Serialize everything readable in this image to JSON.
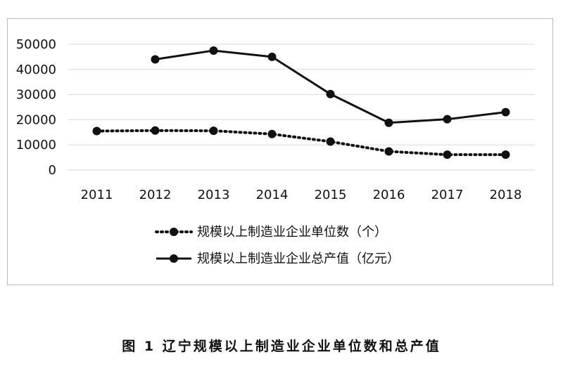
{
  "chart_data": {
    "type": "line",
    "title": "",
    "xlabel": "",
    "ylabel": "",
    "categories": [
      "2011",
      "2012",
      "2013",
      "2014",
      "2015",
      "2016",
      "2017",
      "2018"
    ],
    "ylim": [
      0,
      50000
    ],
    "yticks": [
      "0",
      "10000",
      "20000",
      "30000",
      "40000",
      "50000"
    ],
    "grid": "horizontal",
    "legend_position": "bottom",
    "series": [
      {
        "name": "规模以上制造业企业单位数（个）",
        "style": "dotted",
        "color": "#111111",
        "values": [
          15500,
          15700,
          15600,
          14300,
          11300,
          7400,
          6100,
          6100
        ]
      },
      {
        "name": "规模以上制造业企业总产值（亿元）",
        "style": "solid",
        "color": "#111111",
        "values": [
          null,
          44000,
          47500,
          45000,
          30200,
          18800,
          20200,
          23000
        ]
      }
    ]
  },
  "caption": "图 1  辽宁规模以上制造业企业单位数和总产值"
}
